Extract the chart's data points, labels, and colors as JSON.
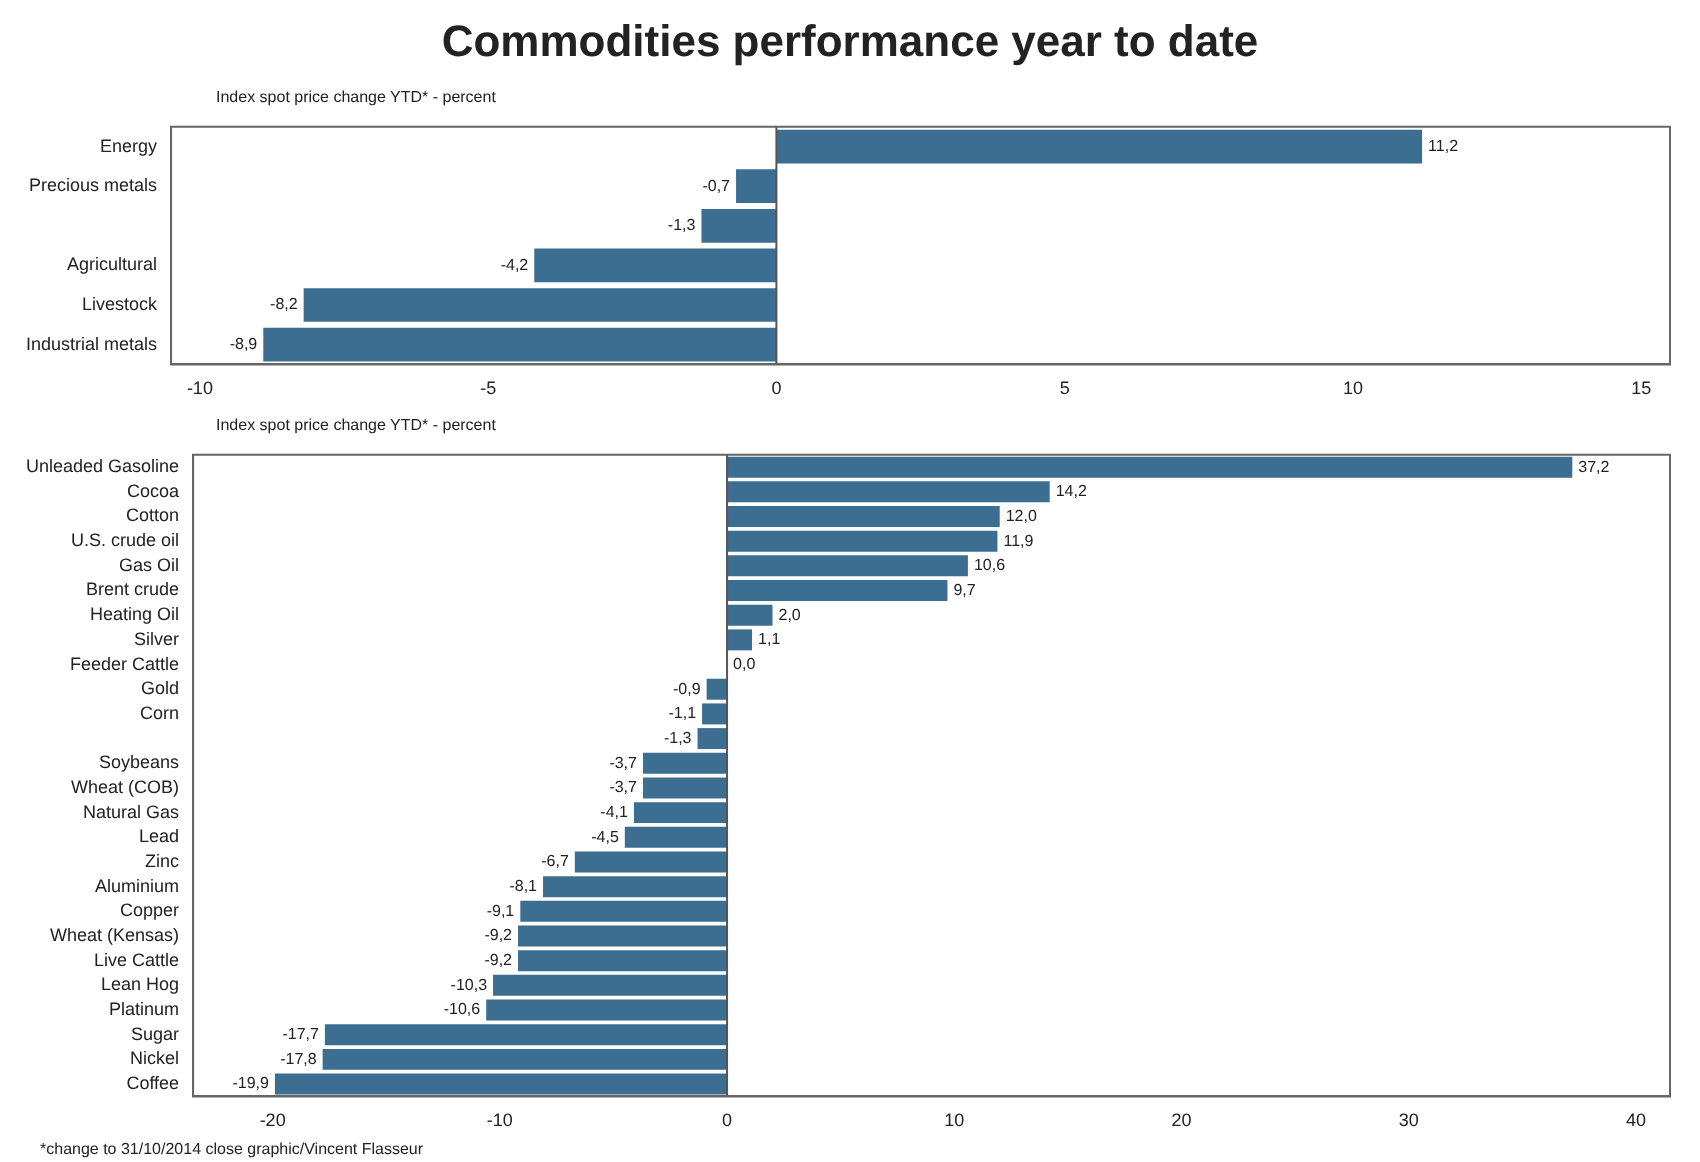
{
  "chart_data": [
    {
      "type": "bar",
      "orientation": "horizontal",
      "title": "Commodities performance year to date",
      "subtitle": "Index spot price change YTD* - percent",
      "categories": [
        "Energy",
        "Precious metals",
        null,
        "Agricultural",
        "Livestock",
        "Industrial metals"
      ],
      "values": [
        11.2,
        -0.7,
        -1.3,
        -4.2,
        -8.2,
        -8.9
      ],
      "value_labels": [
        "11,2",
        "-0,7",
        "-1,3",
        "-4,2",
        "-8,2",
        "-8,9"
      ],
      "color": "#3b6e91",
      "xlim": [
        -10.5,
        15.5
      ],
      "xticks": [
        -10,
        -5,
        0,
        5,
        10,
        15
      ],
      "grid": false,
      "legend": false,
      "ref_lines": [
        {
          "axis": "x",
          "value": 0,
          "color": "#555555"
        }
      ]
    },
    {
      "type": "bar",
      "orientation": "horizontal",
      "subtitle": "Index spot price change YTD* - percent",
      "categories": [
        "Unleaded Gasoline",
        "Cocoa",
        "Cotton",
        "U.S. crude oil",
        "Gas Oil",
        "Brent crude",
        "Heating Oil",
        "Silver",
        "Feeder Cattle",
        "Gold",
        "Corn",
        null,
        "Soybeans",
        "Wheat (COB)",
        "Natural Gas",
        "Lead",
        "Zinc",
        "Aluminium",
        "Copper",
        "Wheat (Kensas)",
        "Live Cattle",
        "Lean Hog",
        "Platinum",
        "Sugar",
        "Nickel",
        "Coffee"
      ],
      "values": [
        37.2,
        14.2,
        12.0,
        11.9,
        10.6,
        9.7,
        2.0,
        1.1,
        0.0,
        -0.9,
        -1.1,
        -1.3,
        -3.7,
        -3.7,
        -4.1,
        -4.5,
        -6.7,
        -8.1,
        -9.1,
        -9.2,
        -9.2,
        -10.3,
        -10.6,
        -17.7,
        -17.8,
        -19.9
      ],
      "value_labels": [
        "37,2",
        "14,2",
        "12,0",
        "11,9",
        "10,6",
        "9,7",
        "2,0",
        "1,1",
        "0,0",
        "-0,9",
        "-1,1",
        "-1,3",
        "-3,7",
        "-3,7",
        "-4,1",
        "-4,5",
        "-6,7",
        "-8,1",
        "-9,1",
        "-9,2",
        "-9,2",
        "-10,3",
        "-10,6",
        "-17,7",
        "-17,8",
        "-19,9"
      ],
      "color": "#3b6e91",
      "xlim": [
        -23.5,
        41.5
      ],
      "xticks": [
        -20,
        -10,
        0,
        10,
        20,
        30,
        40
      ],
      "grid": false,
      "legend": false,
      "ref_lines": [
        {
          "axis": "x",
          "value": 0,
          "color": "#555555"
        }
      ],
      "annotations": [
        "*change to 31/10/2014 close",
        "graphic/Vincent Flasseur"
      ]
    }
  ]
}
